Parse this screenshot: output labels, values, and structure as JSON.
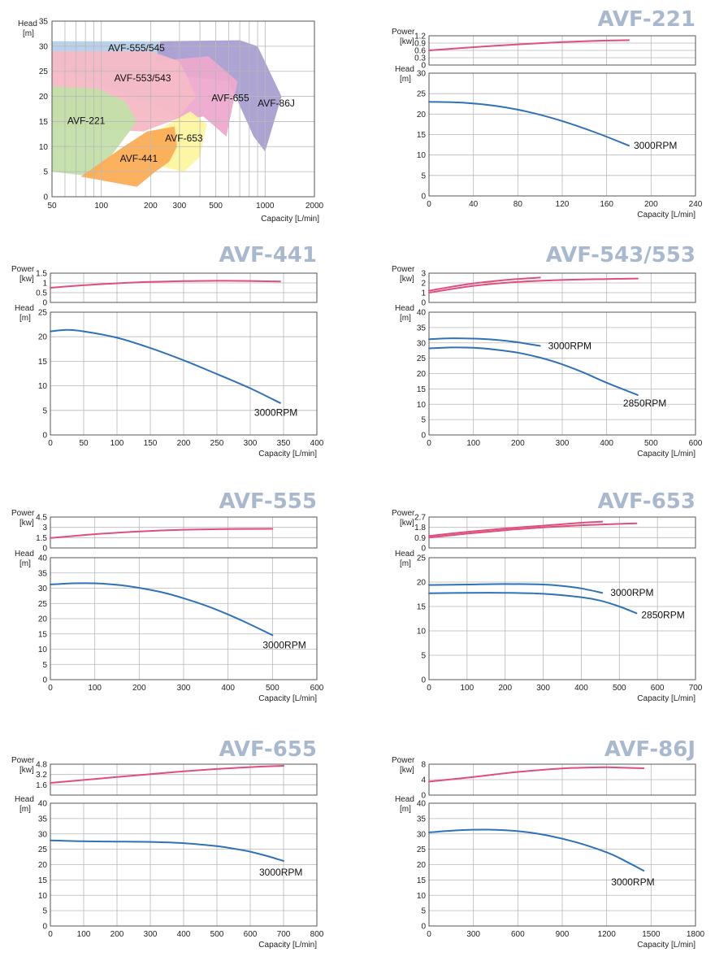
{
  "overview": {
    "ylabel_top": "Head",
    "ylabel_unit": "[m]",
    "xlabel": "Capacity [L/min]",
    "x_ticks": [
      "50",
      "100",
      "200",
      "300",
      "500",
      "1000",
      "2000"
    ],
    "y_ticks": [
      "0",
      "5",
      "10",
      "15",
      "20",
      "25",
      "30",
      "35"
    ],
    "xlim": [
      50,
      2000
    ],
    "ylim": [
      0,
      35
    ],
    "regions": [
      {
        "name": "AVF-555/545",
        "color": "#b5cfe9"
      },
      {
        "name": "AVF-86J",
        "color": "#aa9fd2"
      },
      {
        "name": "AVF-655",
        "color": "#eda9cf"
      },
      {
        "name": "AVF-553/543",
        "color": "#f6b9c6"
      },
      {
        "name": "AVF-221",
        "color": "#c3dfa9"
      },
      {
        "name": "AVF-653",
        "color": "#fcf6a0"
      },
      {
        "name": "AVF-441",
        "color": "#fbad55"
      }
    ]
  },
  "colors": {
    "power": "#e04e7b",
    "head": "#2f72b7",
    "title": "#a8b8cf"
  },
  "chart_data": [
    {
      "type": "line",
      "title": "AVF-221",
      "xlabel": "Capacity [L/min]",
      "power": {
        "ylabel": "Power",
        "yunit": "[kw]",
        "ylim": [
          0,
          1.2
        ],
        "yticks": [
          "0",
          "0.3",
          "0.6",
          "0.9",
          "1.2"
        ],
        "series": [
          {
            "x": [
              0,
              30,
              60,
              90,
              120,
              150,
              180
            ],
            "y": [
              0.6,
              0.7,
              0.79,
              0.87,
              0.94,
              0.99,
              1.02
            ]
          }
        ]
      },
      "head": {
        "ylabel": "Head",
        "yunit": "[m]",
        "ylim": [
          0,
          30
        ],
        "yticks": [
          "0",
          "5",
          "10",
          "15",
          "20",
          "25",
          "30"
        ],
        "series": [
          {
            "name": "3000RPM",
            "x": [
              0,
              30,
              60,
              90,
              120,
              150,
              180
            ],
            "y": [
              23,
              22.8,
              22,
              20.5,
              18.3,
              15.5,
              12.3
            ]
          }
        ]
      },
      "xlim": [
        0,
        240
      ],
      "xticks": [
        "0",
        "40",
        "80",
        "120",
        "160",
        "200",
        "240"
      ]
    },
    {
      "type": "line",
      "title": "AVF-441",
      "xlabel": "Capacity [L/min]",
      "power": {
        "ylabel": "Power",
        "yunit": "[kw]",
        "ylim": [
          0,
          1.5
        ],
        "yticks": [
          "0",
          "0.5",
          "1",
          "1.5"
        ],
        "series": [
          {
            "x": [
              0,
              50,
              100,
              150,
              200,
              250,
              300,
              345
            ],
            "y": [
              0.75,
              0.88,
              0.98,
              1.05,
              1.09,
              1.11,
              1.1,
              1.07
            ]
          }
        ]
      },
      "head": {
        "ylabel": "Head",
        "yunit": "[m]",
        "ylim": [
          0,
          25
        ],
        "yticks": [
          "0",
          "5",
          "10",
          "15",
          "20",
          "25"
        ],
        "series": [
          {
            "name": "3000RPM",
            "x": [
              0,
              25,
              50,
              100,
              150,
              200,
              250,
              300,
              345
            ],
            "y": [
              21.1,
              21.4,
              21.1,
              19.8,
              17.7,
              15.2,
              12.4,
              9.5,
              6.5
            ]
          }
        ]
      },
      "xlim": [
        0,
        400
      ],
      "xticks": [
        "0",
        "50",
        "100",
        "150",
        "200",
        "250",
        "300",
        "350",
        "400"
      ]
    },
    {
      "type": "line",
      "title": "AVF-543/553",
      "xlabel": "Capacity [L/min]",
      "power": {
        "ylabel": "Power",
        "yunit": "[kw]",
        "ylim": [
          0,
          3
        ],
        "yticks": [
          "0",
          "1",
          "2",
          "3"
        ],
        "series": [
          {
            "x": [
              0,
              50,
              100,
              150,
              200,
              250
            ],
            "y": [
              1.2,
              1.6,
              1.95,
              2.2,
              2.4,
              2.55
            ]
          },
          {
            "x": [
              0,
              100,
              200,
              300,
              400,
              470
            ],
            "y": [
              1.0,
              1.7,
              2.1,
              2.3,
              2.4,
              2.45
            ]
          }
        ]
      },
      "head": {
        "ylabel": "Head",
        "yunit": "[m]",
        "ylim": [
          0,
          40
        ],
        "yticks": [
          "0",
          "5",
          "10",
          "15",
          "20",
          "25",
          "30",
          "35",
          "40"
        ],
        "series": [
          {
            "name": "3000RPM",
            "x": [
              0,
              50,
              100,
              150,
              200,
              250
            ],
            "y": [
              31.2,
              31.5,
              31.4,
              31,
              30.2,
              29
            ]
          },
          {
            "name": "2850RPM",
            "x": [
              0,
              50,
              100,
              150,
              200,
              250,
              300,
              350,
              400,
              470
            ],
            "y": [
              28.2,
              28.5,
              28.4,
              27.8,
              26.8,
              25.2,
              23,
              20.2,
              17,
              13
            ]
          }
        ]
      },
      "xlim": [
        0,
        600
      ],
      "xticks": [
        "0",
        "100",
        "200",
        "300",
        "400",
        "500",
        "600"
      ]
    },
    {
      "type": "line",
      "title": "AVF-555",
      "xlabel": "Capacity [L/min]",
      "power": {
        "ylabel": "Power",
        "yunit": "[kw]",
        "ylim": [
          0,
          4.5
        ],
        "yticks": [
          "0",
          "1.5",
          "3",
          "4.5"
        ],
        "series": [
          {
            "x": [
              0,
              100,
              200,
              300,
              400,
              500
            ],
            "y": [
              1.45,
              2.0,
              2.4,
              2.65,
              2.75,
              2.78
            ]
          }
        ]
      },
      "head": {
        "ylabel": "Head",
        "yunit": "[m]",
        "ylim": [
          0,
          40
        ],
        "yticks": [
          "0",
          "5",
          "10",
          "15",
          "20",
          "25",
          "30",
          "35",
          "40"
        ],
        "series": [
          {
            "name": "3000RPM",
            "x": [
              0,
              50,
              100,
              150,
              200,
              250,
              300,
              350,
              400,
              450,
              500
            ],
            "y": [
              31.2,
              31.6,
              31.6,
              31.1,
              30.1,
              28.7,
              26.7,
              24.3,
              21.4,
              18.1,
              14.6
            ]
          }
        ]
      },
      "xlim": [
        0,
        600
      ],
      "xticks": [
        "0",
        "100",
        "200",
        "300",
        "400",
        "500",
        "600"
      ]
    },
    {
      "type": "line",
      "title": "AVF-653",
      "xlabel": "Capacity [L/min]",
      "power": {
        "ylabel": "Power",
        "yunit": "[kw]",
        "ylim": [
          0,
          2.7
        ],
        "yticks": [
          "0",
          "0.9",
          "1.8",
          "2.7"
        ],
        "series": [
          {
            "x": [
              0,
              100,
              200,
              300,
              400,
              455
            ],
            "y": [
              1.05,
              1.4,
              1.7,
              1.95,
              2.2,
              2.3
            ]
          },
          {
            "x": [
              0,
              100,
              200,
              300,
              400,
              545
            ],
            "y": [
              0.9,
              1.25,
              1.55,
              1.8,
              1.98,
              2.15
            ]
          }
        ]
      },
      "head": {
        "ylabel": "Head",
        "yunit": "[m]",
        "ylim": [
          0,
          25
        ],
        "yticks": [
          "0",
          "5",
          "10",
          "15",
          "20",
          "25"
        ],
        "series": [
          {
            "name": "3000RPM",
            "x": [
              0,
              100,
              200,
              300,
              350,
              400,
              455
            ],
            "y": [
              19.4,
              19.5,
              19.6,
              19.5,
              19.2,
              18.7,
              17.8
            ]
          },
          {
            "name": "2850RPM",
            "x": [
              0,
              100,
              200,
              300,
              400,
              450,
              500,
              545
            ],
            "y": [
              17.7,
              17.8,
              17.8,
              17.6,
              16.9,
              16.2,
              15,
              13.6
            ]
          }
        ]
      },
      "xlim": [
        0,
        700
      ],
      "xticks": [
        "0",
        "100",
        "200",
        "300",
        "400",
        "500",
        "600",
        "700"
      ]
    },
    {
      "type": "line",
      "title": "AVF-655",
      "xlabel": "Capacity [L/min]",
      "power": {
        "ylabel": "Power",
        "yunit": "[kw]",
        "ylim": [
          0,
          4.8
        ],
        "yticks": [
          "1.6",
          "3.2",
          "4.8"
        ],
        "series": [
          {
            "x": [
              0,
              100,
              200,
              300,
              400,
              500,
              600,
              700
            ],
            "y": [
              1.9,
              2.35,
              2.8,
              3.25,
              3.7,
              4.05,
              4.35,
              4.55
            ]
          }
        ]
      },
      "head": {
        "ylabel": "Head",
        "yunit": "[m]",
        "ylim": [
          0,
          40
        ],
        "yticks": [
          "0",
          "5",
          "10",
          "15",
          "20",
          "25",
          "30",
          "35",
          "40"
        ],
        "series": [
          {
            "name": "3000RPM",
            "x": [
              0,
              100,
              200,
              300,
              400,
              500,
              550,
              600,
              650,
              700
            ],
            "y": [
              27.9,
              27.6,
              27.5,
              27.4,
              27,
              26,
              25.2,
              24.2,
              22.8,
              21.2
            ]
          }
        ]
      },
      "xlim": [
        0,
        800
      ],
      "xticks": [
        "0",
        "100",
        "200",
        "300",
        "400",
        "500",
        "600",
        "700",
        "800"
      ]
    },
    {
      "type": "line",
      "title": "AVF-86J",
      "xlabel": "Capacity [L/min]",
      "power": {
        "ylabel": "Power",
        "yunit": "[kw]",
        "ylim": [
          0,
          8
        ],
        "yticks": [
          "0",
          "4",
          "8"
        ],
        "series": [
          {
            "x": [
              0,
              300,
              600,
              900,
              1100,
              1200,
              1300,
              1450
            ],
            "y": [
              3.5,
              4.7,
              6.0,
              6.9,
              7.15,
              7.2,
              7.1,
              6.95
            ]
          }
        ]
      },
      "head": {
        "ylabel": "Head",
        "yunit": "[m]",
        "ylim": [
          0,
          40
        ],
        "yticks": [
          "0",
          "5",
          "10",
          "15",
          "20",
          "25",
          "30",
          "35",
          "40"
        ],
        "series": [
          {
            "name": "3000RPM",
            "x": [
              0,
              200,
              400,
              600,
              800,
              1000,
              1200,
              1300,
              1450
            ],
            "y": [
              30.5,
              31.2,
              31.4,
              30.9,
              29.5,
              27.2,
              24,
              21.8,
              18
            ]
          }
        ]
      },
      "xlim": [
        0,
        1800
      ],
      "xticks": [
        "0",
        "300",
        "600",
        "900",
        "1200",
        "1500",
        "1800"
      ]
    }
  ]
}
